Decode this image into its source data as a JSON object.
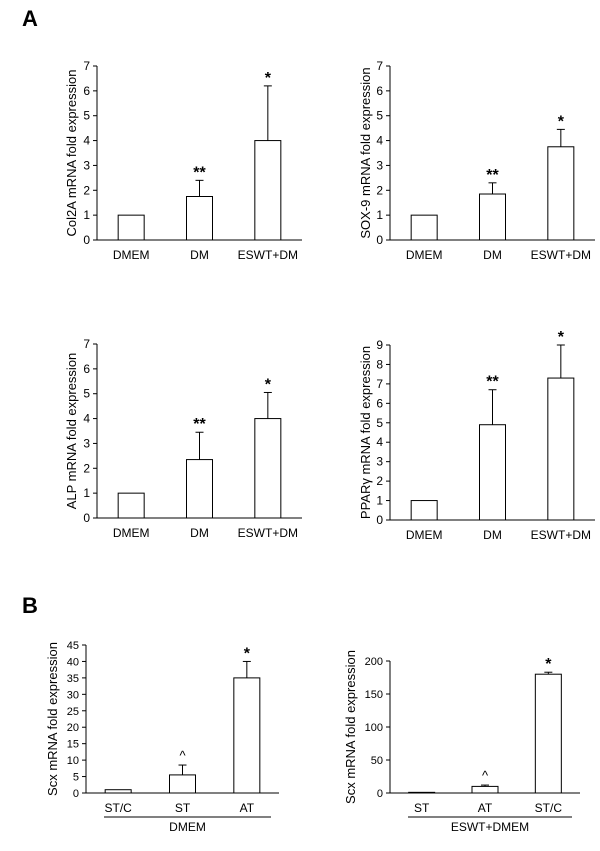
{
  "panels": {
    "a": "A",
    "b": "B"
  },
  "chart_data": [
    {
      "type": "bar",
      "categories": [
        "DMEM",
        "DM",
        "ESWT+DM"
      ],
      "values": [
        1,
        1.75,
        4
      ],
      "errors": [
        0,
        0.65,
        2.2
      ],
      "annotations": [
        "",
        "**",
        "*"
      ],
      "ylabel": "Col2A mRNA fold expression",
      "xlabel": "",
      "ylim": [
        0,
        7
      ],
      "yticks": [
        0,
        1,
        2,
        3,
        4,
        5,
        6,
        7
      ]
    },
    {
      "type": "bar",
      "categories": [
        "DMEM",
        "DM",
        "ESWT+DM"
      ],
      "values": [
        1,
        1.85,
        3.75
      ],
      "errors": [
        0,
        0.45,
        0.7
      ],
      "annotations": [
        "",
        "**",
        "*"
      ],
      "ylabel": "SOX-9 mRNA fold expression",
      "xlabel": "",
      "ylim": [
        0,
        7
      ],
      "yticks": [
        0,
        1,
        2,
        3,
        4,
        5,
        6,
        7
      ]
    },
    {
      "type": "bar",
      "categories": [
        "DMEM",
        "DM",
        "ESWT+DM"
      ],
      "values": [
        1,
        2.35,
        4
      ],
      "errors": [
        0,
        1.1,
        1.05
      ],
      "annotations": [
        "",
        "**",
        "*"
      ],
      "ylabel": "ALP mRNA fold expression",
      "xlabel": "",
      "ylim": [
        0,
        7
      ],
      "yticks": [
        0,
        1,
        2,
        3,
        4,
        5,
        6,
        7
      ]
    },
    {
      "type": "bar",
      "categories": [
        "DMEM",
        "DM",
        "ESWT+DM"
      ],
      "values": [
        1,
        4.9,
        7.3
      ],
      "errors": [
        0,
        1.8,
        1.7
      ],
      "annotations": [
        "",
        "**",
        "*"
      ],
      "ylabel": "PPARγ mRNA fold expression",
      "xlabel": "",
      "ylim": [
        0,
        9
      ],
      "yticks": [
        0,
        1,
        2,
        3,
        4,
        5,
        6,
        7,
        8,
        9
      ]
    },
    {
      "type": "bar",
      "categories": [
        "ST/C",
        "ST",
        "AT"
      ],
      "values": [
        1,
        5.5,
        35
      ],
      "errors": [
        0,
        3,
        5
      ],
      "annotations": [
        "",
        "^",
        "*"
      ],
      "ylabel": "Scx mRNA fold expression",
      "xlabel": "DMEM",
      "ylim": [
        0,
        45
      ],
      "yticks": [
        0,
        5,
        10,
        15,
        20,
        25,
        30,
        35,
        40,
        45
      ]
    },
    {
      "type": "bar",
      "categories": [
        "ST",
        "AT",
        "ST/C"
      ],
      "values": [
        1,
        10,
        180
      ],
      "errors": [
        0,
        2,
        3
      ],
      "annotations": [
        "",
        "^",
        "*"
      ],
      "ylabel": "Scx mRNA fold expression",
      "xlabel": "ESWT+DMEM",
      "ylim": [
        0,
        200
      ],
      "yticks": [
        0,
        50,
        100,
        150,
        200
      ]
    }
  ]
}
